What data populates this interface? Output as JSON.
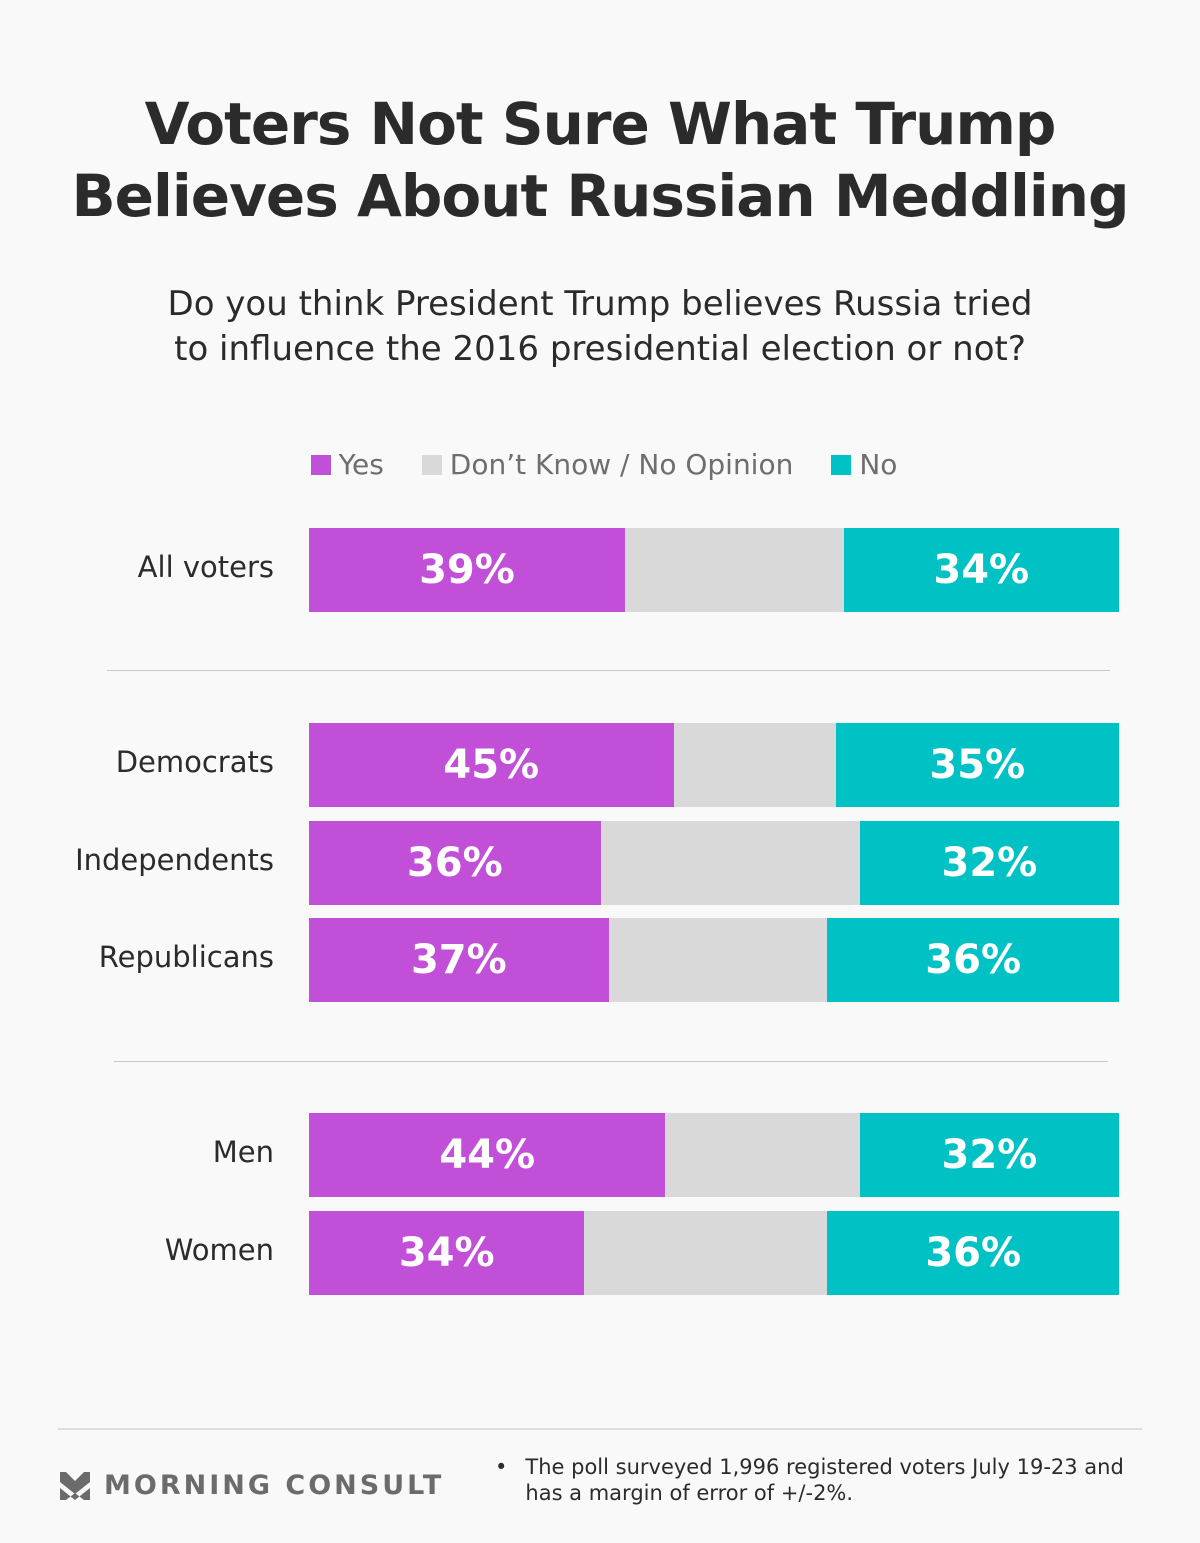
{
  "title_lines": [
    "Voters Not Sure What Trump",
    "Believes About Russian Meddling"
  ],
  "subtitle_lines": [
    "Do you think President Trump believes Russia tried",
    "to influence the 2016 presidential election or not?"
  ],
  "legend": [
    {
      "label": "Yes",
      "color": "#c24fd8"
    },
    {
      "label": "Don’t Know / No Opinion",
      "color": "#d9d9d9"
    },
    {
      "label": "No",
      "color": "#00c2c4"
    }
  ],
  "chart_data": {
    "type": "bar",
    "orientation": "horizontal",
    "stacked": true,
    "title": "Voters Not Sure What Trump Believes About Russian Meddling",
    "subtitle": "Do you think President Trump believes Russia tried to influence the 2016 presidential election or not?",
    "categories": [
      "All voters",
      "Democrats",
      "Independents",
      "Republicans",
      "Men",
      "Women"
    ],
    "groups": [
      [
        "All voters"
      ],
      [
        "Democrats",
        "Independents",
        "Republicans"
      ],
      [
        "Men",
        "Women"
      ]
    ],
    "series": [
      {
        "name": "Yes",
        "color": "#c24fd8",
        "values": [
          39,
          45,
          36,
          37,
          44,
          34
        ],
        "labels": [
          "39%",
          "45%",
          "36%",
          "37%",
          "44%",
          "34%"
        ]
      },
      {
        "name": "Don’t Know / No Opinion",
        "color": "#d9d9d9",
        "values": [
          27,
          20,
          32,
          27,
          24,
          30
        ],
        "labels": [
          "",
          "",
          "",
          "",
          "",
          ""
        ]
      },
      {
        "name": "No",
        "color": "#00c2c4",
        "values": [
          34,
          35,
          32,
          36,
          32,
          36
        ],
        "labels": [
          "34%",
          "35%",
          "32%",
          "36%",
          "32%",
          "36%"
        ]
      }
    ],
    "xlim": [
      0,
      100
    ],
    "xlabel": "",
    "ylabel": "",
    "grid": false,
    "legend_position": "top-center"
  },
  "footer": {
    "brand": "MORNING CONSULT",
    "bullet": "•",
    "note": "The poll surveyed 1,996 registered voters July 19-23 and has a margin of error of +/-2%."
  }
}
